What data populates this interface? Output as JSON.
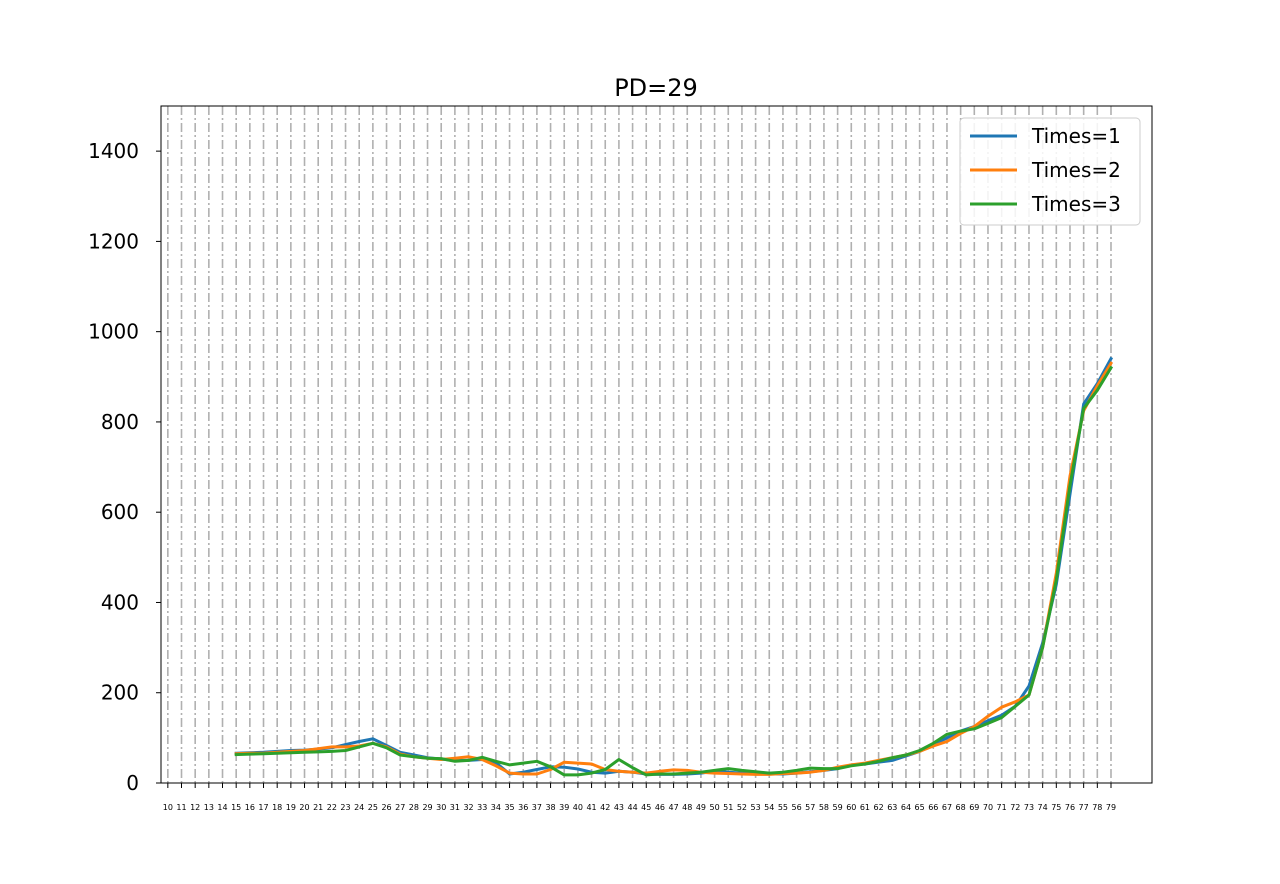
{
  "chart_data": {
    "type": "line",
    "title": "PD=29",
    "xlabel": "",
    "ylabel": "",
    "xlim": [
      9.5,
      82
    ],
    "ylim": [
      0,
      1500
    ],
    "x_ticks": [
      10,
      11,
      12,
      13,
      14,
      15,
      16,
      17,
      18,
      19,
      20,
      21,
      22,
      23,
      24,
      25,
      26,
      27,
      28,
      29,
      30,
      31,
      32,
      33,
      34,
      35,
      36,
      37,
      38,
      39,
      40,
      41,
      42,
      43,
      44,
      45,
      46,
      47,
      48,
      49,
      50,
      51,
      52,
      53,
      54,
      55,
      56,
      57,
      58,
      59,
      60,
      61,
      62,
      63,
      64,
      65,
      66,
      67,
      68,
      69,
      70,
      71,
      72,
      73,
      74,
      75,
      76,
      77,
      78,
      79
    ],
    "y_ticks": [
      0,
      200,
      400,
      600,
      800,
      1000,
      1200,
      1400
    ],
    "grid": "vertical dash-dot",
    "legend_position": "top-right",
    "x": [
      15,
      16,
      17,
      18,
      19,
      20,
      21,
      22,
      23,
      24,
      25,
      26,
      27,
      28,
      29,
      30,
      31,
      32,
      33,
      34,
      35,
      36,
      37,
      38,
      39,
      40,
      41,
      42,
      43,
      44,
      45,
      46,
      47,
      48,
      49,
      50,
      51,
      52,
      53,
      54,
      55,
      56,
      57,
      58,
      59,
      60,
      61,
      62,
      63,
      64,
      65,
      66,
      67,
      68,
      69,
      70,
      71,
      72,
      73,
      74,
      75,
      76,
      77,
      78,
      79
    ],
    "series": [
      {
        "name": "Times=1",
        "color": "#1f77b4",
        "values": [
          66,
          67,
          68,
          70,
          72,
          73,
          75,
          78,
          85,
          92,
          98,
          83,
          68,
          62,
          56,
          53,
          50,
          50,
          52,
          45,
          20,
          24,
          30,
          36,
          35,
          31,
          24,
          22,
          26,
          24,
          20,
          19,
          19,
          20,
          22,
          26,
          24,
          22,
          21,
          20,
          20,
          22,
          25,
          28,
          32,
          40,
          42,
          46,
          50,
          60,
          70,
          85,
          100,
          115,
          125,
          138,
          150,
          170,
          215,
          310,
          440,
          640,
          840,
          885,
          940
        ]
      },
      {
        "name": "Times=2",
        "color": "#ff7f0e",
        "values": [
          65,
          66,
          66,
          68,
          70,
          72,
          76,
          80,
          80,
          82,
          88,
          80,
          64,
          58,
          55,
          52,
          55,
          58,
          52,
          38,
          22,
          20,
          20,
          30,
          46,
          44,
          42,
          30,
          26,
          24,
          22,
          26,
          29,
          28,
          24,
          22,
          21,
          20,
          19,
          19,
          21,
          22,
          24,
          28,
          35,
          40,
          44,
          50,
          56,
          62,
          70,
          82,
          92,
          110,
          125,
          148,
          168,
          180,
          195,
          300,
          465,
          680,
          825,
          880,
          930
        ]
      },
      {
        "name": "Times=3",
        "color": "#2ca02c",
        "values": [
          63,
          64,
          65,
          66,
          67,
          68,
          69,
          70,
          72,
          80,
          88,
          78,
          62,
          58,
          55,
          54,
          48,
          50,
          57,
          48,
          40,
          44,
          48,
          36,
          18,
          18,
          22,
          30,
          52,
          34,
          18,
          20,
          20,
          22,
          24,
          28,
          32,
          28,
          25,
          22,
          24,
          28,
          33,
          32,
          32,
          38,
          42,
          48,
          56,
          62,
          72,
          88,
          108,
          115,
          120,
          132,
          145,
          170,
          195,
          300,
          450,
          660,
          830,
          870,
          920
        ]
      }
    ]
  }
}
